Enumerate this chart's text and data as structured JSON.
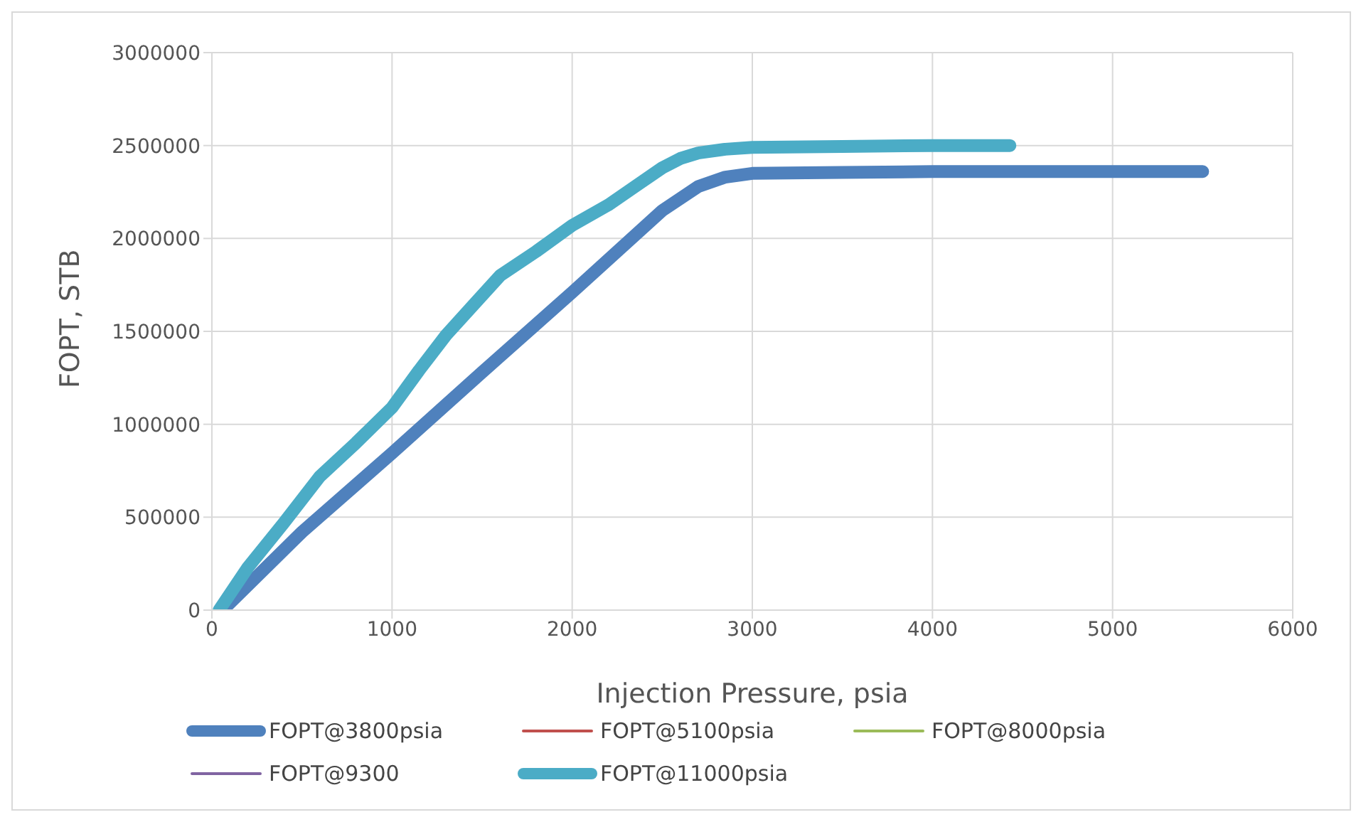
{
  "chart_data": {
    "type": "line",
    "xlabel": "Injection Pressure, psia",
    "ylabel": "FOPT, STB",
    "xlim": [
      0,
      6000
    ],
    "xticks": [
      0,
      1000,
      2000,
      3000,
      4000,
      5000,
      6000
    ],
    "ylim": [
      0,
      3000000
    ],
    "yticks": [
      0,
      500000,
      1000000,
      1500000,
      2000000,
      2500000,
      3000000
    ],
    "grid": true,
    "legend": "bottom",
    "marker": "none",
    "line_style": "solid",
    "series": [
      {
        "name": "FOPT@3800psia",
        "color": "#4f81bd",
        "x": [
          60,
          500,
          1000,
          1500,
          2000,
          2500,
          2700,
          2850,
          3000,
          3500,
          4000,
          4500,
          5000,
          5500
        ],
        "values": [
          0,
          420000,
          845000,
          1280000,
          1710000,
          2150000,
          2280000,
          2330000,
          2350000,
          2355000,
          2360000,
          2360000,
          2360000,
          2360000
        ]
      },
      {
        "name": "FOPT@5100psia",
        "color": "#c0504d"
      },
      {
        "name": "FOPT@8000psia",
        "color": "#9bbb59"
      },
      {
        "name": "FOPT@9300",
        "color": "#8064a2"
      },
      {
        "name": "FOPT@11000psia",
        "color": "#4bacc6",
        "x": [
          40,
          200,
          400,
          600,
          800,
          1000,
          1150,
          1300,
          1450,
          1600,
          1800,
          2000,
          2200,
          2350,
          2500,
          2600,
          2700,
          2850,
          3000,
          3500,
          4000,
          4430
        ],
        "values": [
          0,
          230000,
          470000,
          720000,
          900000,
          1090000,
          1290000,
          1480000,
          1640000,
          1800000,
          1930000,
          2070000,
          2180000,
          2280000,
          2380000,
          2430000,
          2460000,
          2480000,
          2490000,
          2495000,
          2500000,
          2500000
        ]
      }
    ]
  }
}
